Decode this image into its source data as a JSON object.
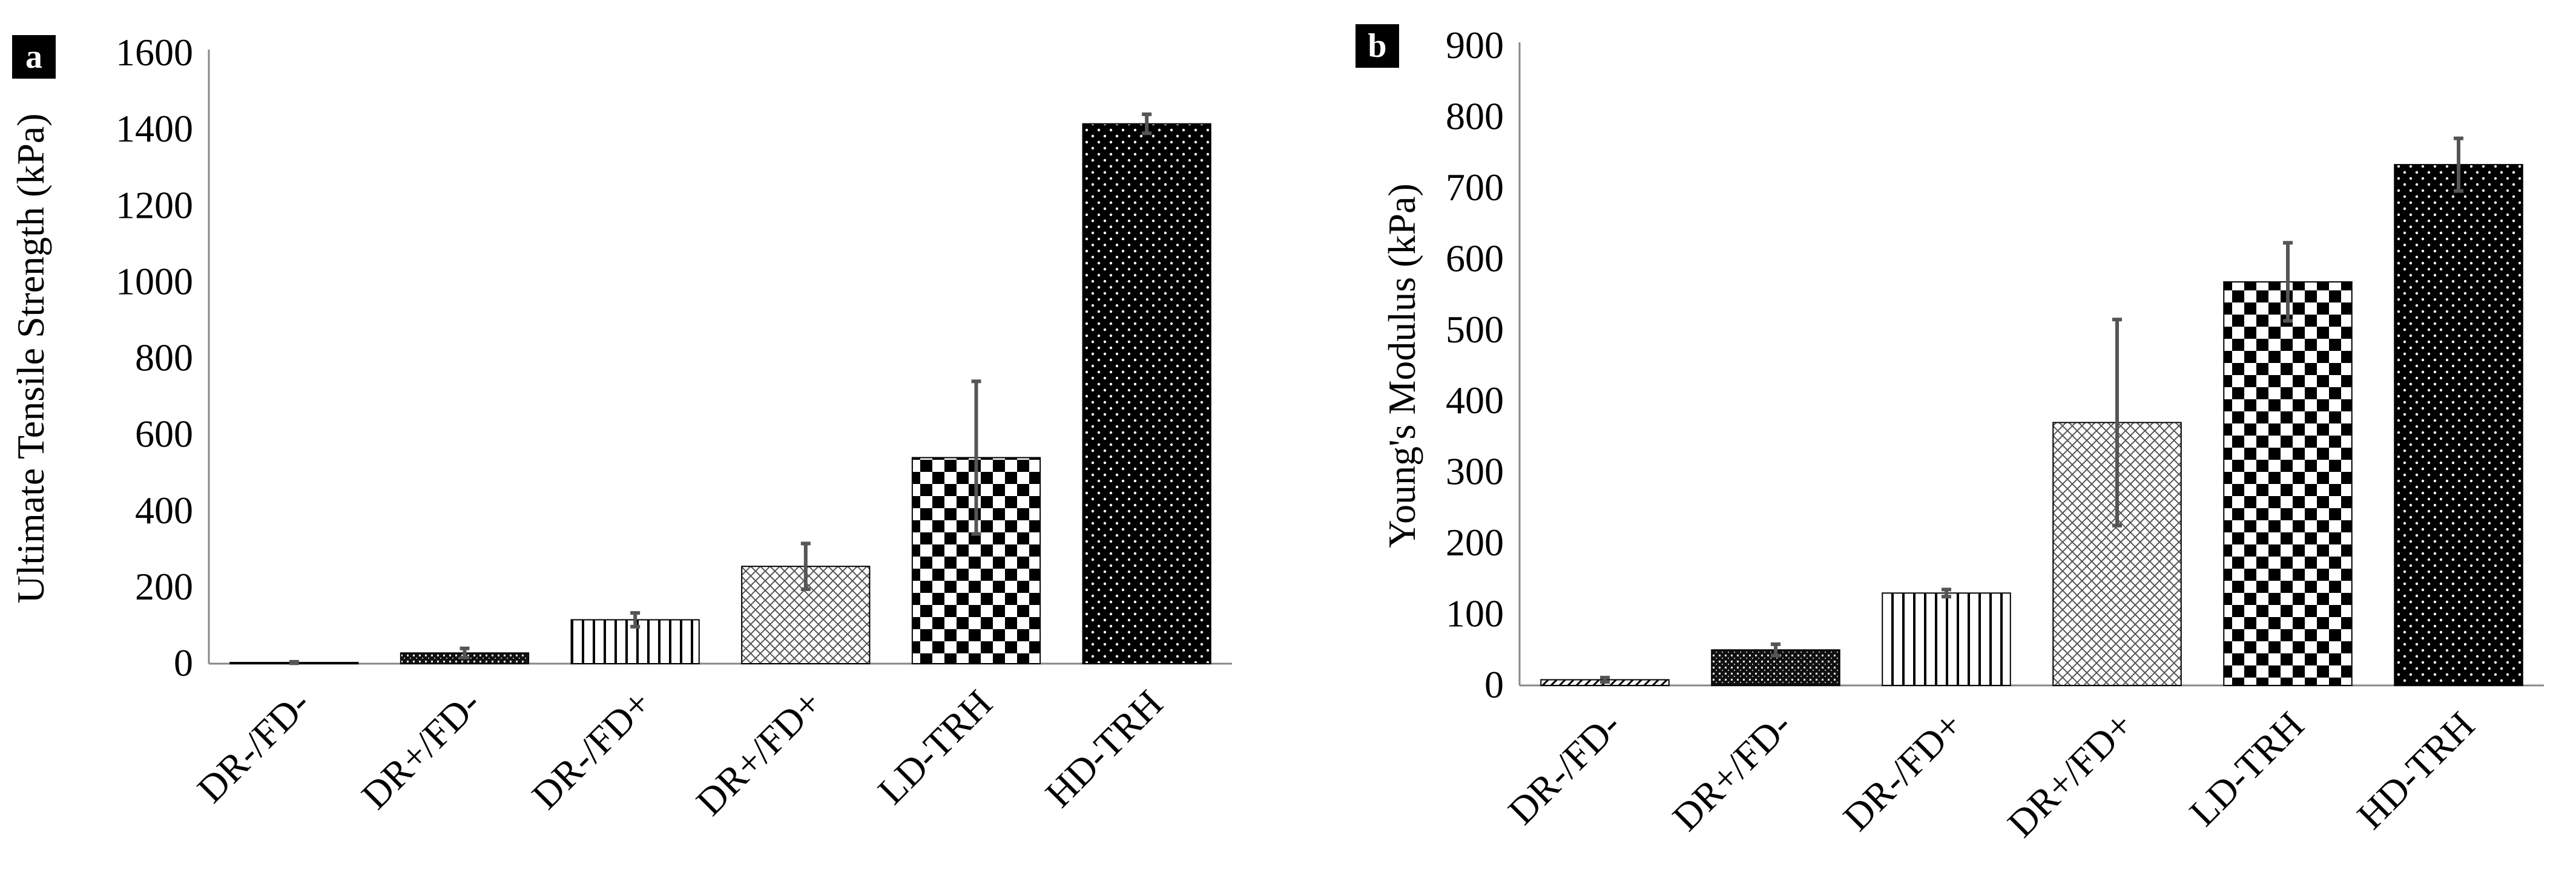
{
  "chart_data": [
    {
      "panel": "a",
      "type": "bar",
      "categories": [
        "DR-/FD-",
        "DR+/FD-",
        "DR-/FD+",
        "DR+/FD+",
        "LD-TRH",
        "HD-TRH"
      ],
      "values": [
        3,
        28,
        115,
        255,
        540,
        1415
      ],
      "errors": [
        2,
        12,
        18,
        60,
        200,
        25
      ],
      "patterns": [
        "diag",
        "dense",
        "vlines",
        "cross",
        "checker",
        "dots"
      ],
      "xlabel": "",
      "ylabel": "Ultimate Tensile Strength (kPa)",
      "ylim": [
        0,
        1600
      ],
      "yticks": [
        0,
        200,
        400,
        600,
        800,
        1000,
        1200,
        1400,
        1600
      ],
      "grid": false,
      "legend": "none"
    },
    {
      "panel": "b",
      "type": "bar",
      "categories": [
        "DR-/FD-",
        "DR+/FD-",
        "DR-/FD+",
        "DR+/FD+",
        "LD-TRH",
        "HD-TRH"
      ],
      "values": [
        8,
        50,
        130,
        370,
        568,
        733
      ],
      "errors": [
        3,
        8,
        5,
        145,
        55,
        37
      ],
      "patterns": [
        "diag",
        "dense",
        "vlines",
        "cross",
        "checker",
        "dots"
      ],
      "xlabel": "",
      "ylabel": "Young's Modulus (kPa)",
      "ylim": [
        0,
        900
      ],
      "yticks": [
        0,
        100,
        200,
        300,
        400,
        500,
        600,
        700,
        800,
        900
      ],
      "grid": false,
      "legend": "none"
    }
  ]
}
